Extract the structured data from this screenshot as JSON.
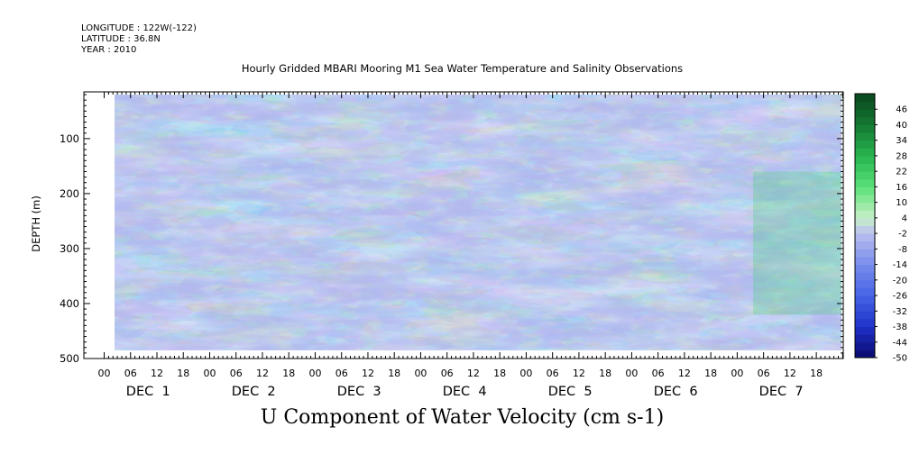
{
  "header": {
    "longitude": "LONGITUDE : 122W(-122)",
    "latitude": "LATITUDE : 36.8N",
    "year": "YEAR : 2010",
    "subtitle": "Hourly Gridded MBARI Mooring M1 Sea Water Temperature and Salinity Observations"
  },
  "chart_data": {
    "type": "heatmap",
    "title": "U Component of Water Velocity (cm s-1)",
    "xlabel": "",
    "ylabel": "DEPTH (m)",
    "ylim": [
      500,
      15
    ],
    "y_inverted": true,
    "yticks": [
      100,
      200,
      300,
      400,
      500
    ],
    "x_hour_labels": [
      "00",
      "06",
      "12",
      "18",
      "00",
      "06",
      "12",
      "18",
      "00",
      "06",
      "12",
      "18",
      "00",
      "06",
      "12",
      "18",
      "00",
      "06",
      "12",
      "18",
      "00",
      "06",
      "12",
      "18",
      "00",
      "06",
      "12",
      "18"
    ],
    "x_day_labels": [
      "DEC  1",
      "DEC  2",
      "DEC  3",
      "DEC  4",
      "DEC  5",
      "DEC  6",
      "DEC  7"
    ],
    "colorbar": {
      "labels": [
        "46",
        "40",
        "34",
        "28",
        "22",
        "16",
        "10",
        "4",
        "-2",
        "-8",
        "-14",
        "-20",
        "-26",
        "-32",
        "-38",
        "-44",
        "-50"
      ],
      "min": -50,
      "max": 52
    },
    "data_extent": {
      "depth_top": 20,
      "depth_bottom": 485
    },
    "colors": {
      "background": "#ffffff",
      "neutral": "#b0b6ee",
      "green": "#30d268",
      "blue": "#6876e2"
    }
  }
}
